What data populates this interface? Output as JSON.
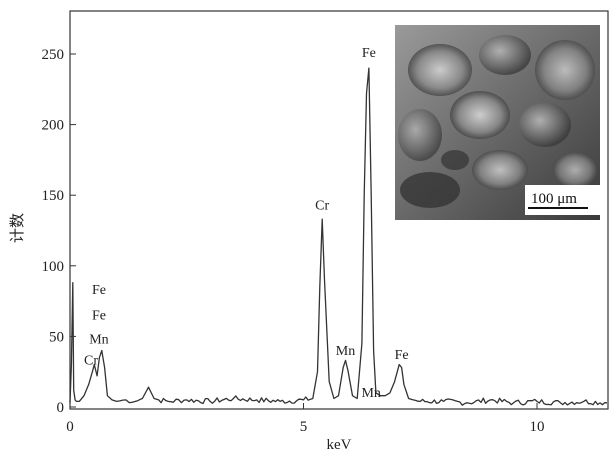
{
  "chart_data": {
    "type": "line",
    "title": "",
    "xlabel": "keV",
    "ylabel": "计数",
    "xlim": [
      0,
      11.5
    ],
    "ylim": [
      0,
      275
    ],
    "x_ticks": [
      0,
      5,
      10
    ],
    "y_ticks": [
      0,
      50,
      100,
      150,
      200,
      250
    ],
    "grid": false,
    "series": [
      {
        "x": [
          0.0,
          0.03,
          0.06,
          0.08,
          0.11,
          0.14,
          0.2,
          0.3,
          0.4,
          0.48,
          0.52,
          0.58,
          0.63,
          0.68,
          0.7,
          0.74,
          0.8,
          0.9,
          1.0,
          1.2,
          1.4,
          1.55,
          1.68,
          1.74,
          1.8,
          1.9,
          2.1,
          2.5,
          3.0,
          3.5,
          4.0,
          4.5,
          5.0,
          5.2,
          5.3,
          5.35,
          5.4,
          5.45,
          5.55,
          5.65,
          5.75,
          5.85,
          5.9,
          5.95,
          6.05,
          6.15,
          6.25,
          6.3,
          6.35,
          6.4,
          6.45,
          6.5,
          6.55,
          6.65,
          6.75,
          6.85,
          6.95,
          7.05,
          7.1,
          7.15,
          7.25,
          7.35,
          7.5,
          8.0,
          8.5,
          9.0,
          9.5,
          10.0,
          10.5,
          11.0,
          11.5
        ],
        "values": [
          3,
          30,
          88,
          12,
          5,
          4,
          4,
          8,
          16,
          25,
          30,
          22,
          35,
          40,
          36,
          28,
          8,
          5,
          4,
          5,
          4,
          6,
          14,
          10,
          6,
          5,
          4,
          5,
          4,
          6,
          5,
          4,
          5,
          6,
          25,
          85,
          133,
          90,
          18,
          6,
          8,
          28,
          33,
          26,
          8,
          6,
          45,
          150,
          222,
          240,
          150,
          40,
          10,
          8,
          8,
          10,
          18,
          30,
          28,
          16,
          6,
          5,
          4,
          4,
          3,
          5,
          3,
          4,
          3,
          4,
          3
        ]
      }
    ],
    "annotations": [
      {
        "text": "Fe",
        "x": 0.62,
        "y": 80
      },
      {
        "text": "Fe",
        "x": 0.62,
        "y": 62
      },
      {
        "text": "Mn",
        "x": 0.62,
        "y": 45
      },
      {
        "text": "Cr",
        "x": 0.45,
        "y": 30
      },
      {
        "text": "Cr",
        "x": 5.4,
        "y": 140
      },
      {
        "text": "Fe",
        "x": 6.4,
        "y": 248
      },
      {
        "text": "Mn",
        "x": 5.9,
        "y": 37
      },
      {
        "text": "Mn",
        "x": 6.45,
        "y": 7
      },
      {
        "text": "Fe",
        "x": 7.1,
        "y": 34
      }
    ]
  },
  "inset": {
    "scale_bar_label": "100 μm"
  }
}
